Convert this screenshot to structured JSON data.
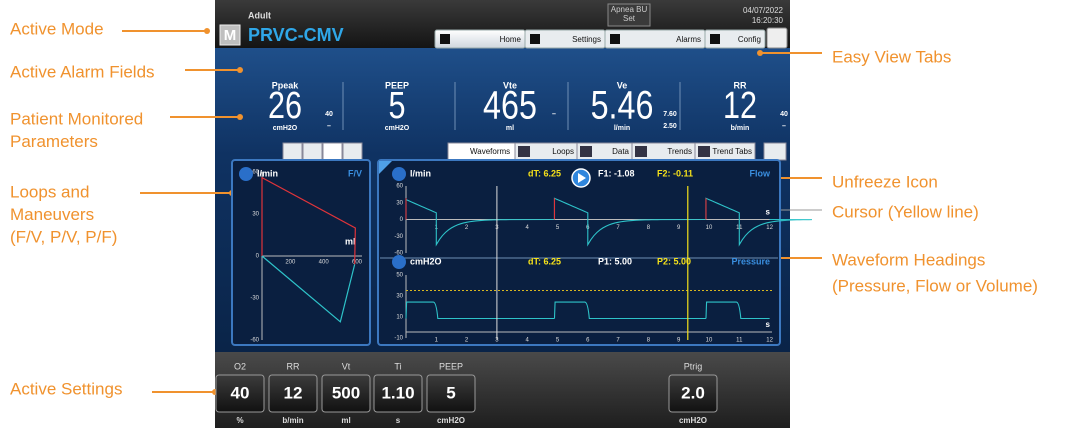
{
  "annotations": {
    "left": [
      {
        "lines": [
          "Active Mode"
        ]
      },
      {
        "lines": [
          "Active Alarm Fields"
        ]
      },
      {
        "lines": [
          "Patient Monitored",
          "Parameters"
        ]
      },
      {
        "lines": [
          "Loops and",
          "Maneuvers",
          "(F/V, P/V, P/F)"
        ]
      },
      {
        "lines": [
          "Active Settings"
        ]
      }
    ],
    "right": [
      {
        "lines": [
          "Easy View Tabs"
        ]
      },
      {
        "lines": [
          "Unfreeze Icon"
        ]
      },
      {
        "lines": [
          "Cursor (Yellow line)"
        ]
      },
      {
        "lines": [
          "Waveform Headings",
          "(Pressure, Flow or Volume)"
        ]
      }
    ]
  },
  "header": {
    "patient": "Adult",
    "mode_icon": "M",
    "mode": "PRVC-CMV",
    "apnea": [
      "Apnea BU",
      "Set"
    ],
    "date": "04/07/2022",
    "time": "16:20:30"
  },
  "tabs": [
    "Home",
    "Settings",
    "Alarms",
    "Config"
  ],
  "parameters": [
    {
      "name": "Ppeak",
      "value": "26",
      "unit": "cmH2O",
      "limits": [
        "40",
        "–"
      ]
    },
    {
      "name": "PEEP",
      "value": "5",
      "unit": "cmH2O",
      "limits": []
    },
    {
      "name": "Vte",
      "value": "465",
      "unit": "ml",
      "limits": [
        "–"
      ]
    },
    {
      "name": "Ve",
      "value": "5.46",
      "unit": "l/min",
      "limits": [
        "7.60",
        "2.50"
      ]
    },
    {
      "name": "RR",
      "value": "12",
      "unit": "b/min",
      "limits": [
        "40",
        "–"
      ]
    }
  ],
  "view_tabs": [
    "Waveforms",
    "Loops",
    "Data",
    "Trends",
    "Trend Tabs"
  ],
  "loop": {
    "unit": "l/min",
    "type": "F/V",
    "yticks": [
      "60",
      "30",
      "0",
      "-30",
      "-60"
    ],
    "xticks": [
      "200",
      "400",
      "600"
    ],
    "x_unit": "ml"
  },
  "waveforms": [
    {
      "unit": "l/min",
      "dT": "dT: 6.25",
      "c1": "F1: -1.08",
      "c2": "F2: -0.11",
      "heading": "Flow",
      "yticks": [
        "60",
        "30",
        "0",
        "-30",
        "-60"
      ],
      "xticks": [
        "1",
        "2",
        "3",
        "4",
        "5",
        "6",
        "7",
        "8",
        "9",
        "10",
        "11",
        "12"
      ],
      "x_unit": "s"
    },
    {
      "unit": "cmH2O",
      "dT": "dT: 6.25",
      "c1": "P1: 5.00",
      "c2": "P2: 5.00",
      "heading": "Pressure",
      "yticks": [
        "50",
        "30",
        "10",
        "-10"
      ],
      "xticks": [
        "1",
        "2",
        "3",
        "4",
        "5",
        "6",
        "7",
        "8",
        "9",
        "10",
        "11",
        "12"
      ],
      "x_unit": "s"
    }
  ],
  "settings": [
    {
      "name": "O2",
      "value": "40",
      "unit": "%"
    },
    {
      "name": "RR",
      "value": "12",
      "unit": "b/min"
    },
    {
      "name": "Vt",
      "value": "500",
      "unit": "ml"
    },
    {
      "name": "Ti",
      "value": "1.10",
      "unit": "s"
    },
    {
      "name": "PEEP",
      "value": "5",
      "unit": "cmH2O"
    },
    {
      "name": "Ptrig",
      "value": "2.0",
      "unit": "cmH2O"
    }
  ]
}
